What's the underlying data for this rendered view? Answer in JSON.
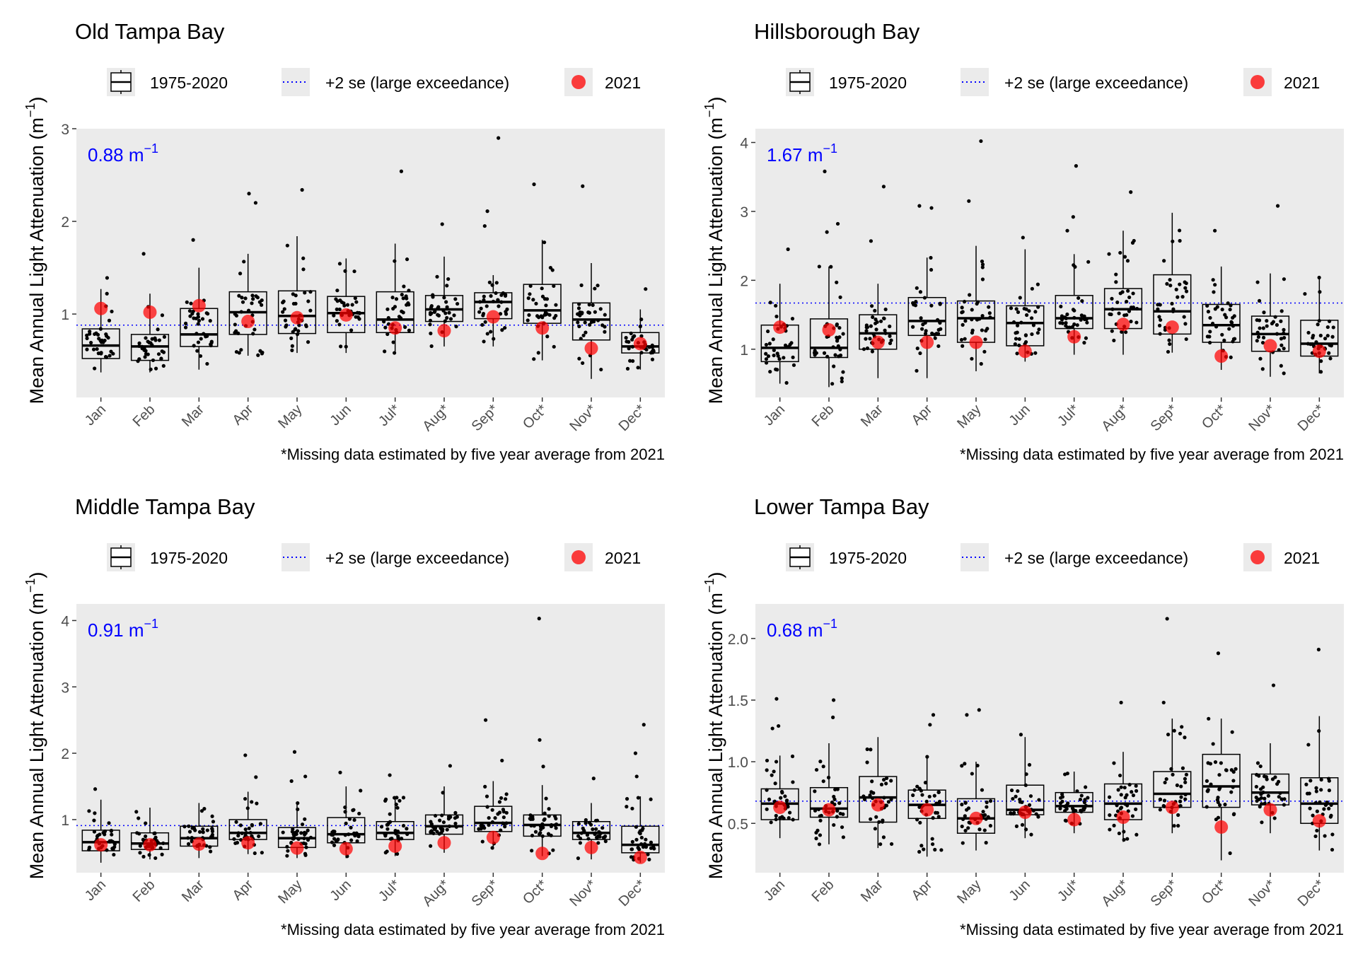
{
  "common": {
    "ylabel": "Mean Annual Light Attenuation (m",
    "ylabel_sup": "−1",
    "ylabel_close": ")",
    "legend": {
      "box": "1975-2020",
      "line": "+2 se (large exceedance)",
      "point": "2021"
    },
    "footnote": "*Missing data estimated by five year average from 2021",
    "categories": [
      "Jan",
      "Feb",
      "Mar",
      "Apr",
      "May",
      "Jun",
      "Jul*",
      "Aug*",
      "Sep*",
      "Oct*",
      "Nov*",
      "Dec*"
    ],
    "colors": {
      "panel_bg": "#ebebeb",
      "threshold": "#0000ff",
      "point2021": "#ff0000",
      "box": "#000000"
    }
  },
  "chart_data": [
    {
      "type": "box",
      "title": "Old Tampa Bay",
      "threshold": 0.88,
      "threshold_label": "0.88 m",
      "ylim": [
        0.1,
        3.0
      ],
      "yticks": [
        1,
        2,
        3
      ],
      "boxes": [
        {
          "x": "Jan",
          "q1": 0.52,
          "median": 0.66,
          "q3": 0.84,
          "whisker_low": 0.37,
          "whisker_high": 1.27
        },
        {
          "x": "Feb",
          "q1": 0.5,
          "median": 0.65,
          "q3": 0.78,
          "whisker_low": 0.37,
          "whisker_high": 1.22
        },
        {
          "x": "Mar",
          "q1": 0.65,
          "median": 0.78,
          "q3": 1.06,
          "whisker_low": 0.4,
          "whisker_high": 1.5
        },
        {
          "x": "Apr",
          "q1": 0.78,
          "median": 1.02,
          "q3": 1.24,
          "whisker_low": 0.55,
          "whisker_high": 1.65
        },
        {
          "x": "May",
          "q1": 0.79,
          "median": 0.98,
          "q3": 1.25,
          "whisker_low": 0.58,
          "whisker_high": 1.84
        },
        {
          "x": "Jun",
          "q1": 0.8,
          "median": 1.01,
          "q3": 1.19,
          "whisker_low": 0.58,
          "whisker_high": 1.6
        },
        {
          "x": "Jul*",
          "q1": 0.8,
          "median": 0.94,
          "q3": 1.24,
          "whisker_low": 0.58,
          "whisker_high": 1.76
        },
        {
          "x": "Aug*",
          "q1": 0.92,
          "median": 1.05,
          "q3": 1.2,
          "whisker_low": 0.65,
          "whisker_high": 1.62
        },
        {
          "x": "Sep*",
          "q1": 0.95,
          "median": 1.13,
          "q3": 1.23,
          "whisker_low": 0.65,
          "whisker_high": 1.42
        },
        {
          "x": "Oct*",
          "q1": 0.9,
          "median": 1.04,
          "q3": 1.32,
          "whisker_low": 0.5,
          "whisker_high": 1.8
        },
        {
          "x": "Nov*",
          "q1": 0.72,
          "median": 0.94,
          "q3": 1.12,
          "whisker_low": 0.3,
          "whisker_high": 1.55
        },
        {
          "x": "Dec*",
          "q1": 0.58,
          "median": 0.65,
          "q3": 0.8,
          "whisker_low": 0.4,
          "whisker_high": 1.05
        }
      ],
      "outliers": [
        {
          "x": "Jan",
          "y": 1.39
        },
        {
          "x": "Feb",
          "y": 1.65
        },
        {
          "x": "Mar",
          "y": 1.8
        },
        {
          "x": "Apr",
          "y": 2.3
        },
        {
          "x": "Apr",
          "y": 2.2
        },
        {
          "x": "May",
          "y": 2.34
        },
        {
          "x": "Jul*",
          "y": 2.54
        },
        {
          "x": "Aug*",
          "y": 1.97
        },
        {
          "x": "Sep*",
          "y": 2.9
        },
        {
          "x": "Sep*",
          "y": 2.11
        },
        {
          "x": "Sep*",
          "y": 1.95
        },
        {
          "x": "Oct*",
          "y": 2.4
        },
        {
          "x": "Nov*",
          "y": 2.38
        },
        {
          "x": "Dec*",
          "y": 1.27
        }
      ],
      "values_2021": [
        1.06,
        1.02,
        1.09,
        0.92,
        0.96,
        0.99,
        0.85,
        0.82,
        0.97,
        0.85,
        0.63,
        0.68
      ]
    },
    {
      "type": "box",
      "title": "Hillsborough Bay",
      "threshold": 1.67,
      "threshold_label": "1.67 m",
      "ylim": [
        0.3,
        4.2
      ],
      "yticks": [
        1,
        2,
        3,
        4
      ],
      "boxes": [
        {
          "x": "Jan",
          "q1": 0.82,
          "median": 1.02,
          "q3": 1.35,
          "whisker_low": 0.5,
          "whisker_high": 1.95
        },
        {
          "x": "Feb",
          "q1": 0.88,
          "median": 1.02,
          "q3": 1.44,
          "whisker_low": 0.45,
          "whisker_high": 2.2
        },
        {
          "x": "Mar",
          "q1": 1.0,
          "median": 1.23,
          "q3": 1.5,
          "whisker_low": 0.58,
          "whisker_high": 1.95
        },
        {
          "x": "Apr",
          "q1": 1.2,
          "median": 1.41,
          "q3": 1.75,
          "whisker_low": 0.58,
          "whisker_high": 2.33
        },
        {
          "x": "May",
          "q1": 1.1,
          "median": 1.45,
          "q3": 1.7,
          "whisker_low": 0.68,
          "whisker_high": 2.5
        },
        {
          "x": "Jun",
          "q1": 1.05,
          "median": 1.38,
          "q3": 1.63,
          "whisker_low": 0.82,
          "whisker_high": 2.45
        },
        {
          "x": "Jul*",
          "q1": 1.3,
          "median": 1.45,
          "q3": 1.78,
          "whisker_low": 0.92,
          "whisker_high": 2.38
        },
        {
          "x": "Aug*",
          "q1": 1.3,
          "median": 1.58,
          "q3": 1.88,
          "whisker_low": 0.92,
          "whisker_high": 2.72
        },
        {
          "x": "Sep*",
          "q1": 1.22,
          "median": 1.55,
          "q3": 2.08,
          "whisker_low": 0.95,
          "whisker_high": 2.98
        },
        {
          "x": "Oct*",
          "q1": 1.1,
          "median": 1.35,
          "q3": 1.65,
          "whisker_low": 0.7,
          "whisker_high": 2.2
        },
        {
          "x": "Nov*",
          "q1": 0.97,
          "median": 1.22,
          "q3": 1.48,
          "whisker_low": 0.6,
          "whisker_high": 2.1
        },
        {
          "x": "Dec*",
          "q1": 0.9,
          "median": 1.08,
          "q3": 1.42,
          "whisker_low": 0.65,
          "whisker_high": 2.05
        }
      ],
      "outliers": [
        {
          "x": "Jan",
          "y": 2.45
        },
        {
          "x": "Feb",
          "y": 3.58
        },
        {
          "x": "Feb",
          "y": 2.82
        },
        {
          "x": "Feb",
          "y": 2.7
        },
        {
          "x": "Mar",
          "y": 3.36
        },
        {
          "x": "Mar",
          "y": 2.57
        },
        {
          "x": "Apr",
          "y": 3.08
        },
        {
          "x": "Apr",
          "y": 3.05
        },
        {
          "x": "May",
          "y": 4.02
        },
        {
          "x": "May",
          "y": 3.15
        },
        {
          "x": "Jun",
          "y": 2.62
        },
        {
          "x": "Jul*",
          "y": 3.66
        },
        {
          "x": "Jul*",
          "y": 2.92
        },
        {
          "x": "Jul*",
          "y": 2.72
        },
        {
          "x": "Aug*",
          "y": 3.28
        },
        {
          "x": "Oct*",
          "y": 2.72
        },
        {
          "x": "Nov*",
          "y": 3.08
        }
      ],
      "values_2021": [
        1.32,
        1.28,
        1.1,
        1.1,
        1.1,
        0.97,
        1.18,
        1.36,
        1.32,
        0.9,
        1.05,
        0.97
      ]
    },
    {
      "type": "box",
      "title": "Middle Tampa Bay",
      "threshold": 0.91,
      "threshold_label": "0.91 m",
      "ylim": [
        0.2,
        4.25
      ],
      "yticks": [
        1,
        2,
        3,
        4
      ],
      "boxes": [
        {
          "x": "Jan",
          "q1": 0.53,
          "median": 0.66,
          "q3": 0.84,
          "whisker_low": 0.35,
          "whisker_high": 1.3
        },
        {
          "x": "Feb",
          "q1": 0.55,
          "median": 0.64,
          "q3": 0.8,
          "whisker_low": 0.4,
          "whisker_high": 1.18
        },
        {
          "x": "Mar",
          "q1": 0.6,
          "median": 0.72,
          "q3": 0.9,
          "whisker_low": 0.42,
          "whisker_high": 1.25
        },
        {
          "x": "Apr",
          "q1": 0.7,
          "median": 0.8,
          "q3": 1.0,
          "whisker_low": 0.48,
          "whisker_high": 1.42
        },
        {
          "x": "May",
          "q1": 0.58,
          "median": 0.72,
          "q3": 0.88,
          "whisker_low": 0.42,
          "whisker_high": 1.25
        },
        {
          "x": "Jun",
          "q1": 0.65,
          "median": 0.78,
          "q3": 1.03,
          "whisker_low": 0.42,
          "whisker_high": 1.5
        },
        {
          "x": "Jul*",
          "q1": 0.7,
          "median": 0.8,
          "q3": 0.97,
          "whisker_low": 0.45,
          "whisker_high": 1.35
        },
        {
          "x": "Aug*",
          "q1": 0.78,
          "median": 0.9,
          "q3": 1.07,
          "whisker_low": 0.5,
          "whisker_high": 1.5
        },
        {
          "x": "Sep*",
          "q1": 0.82,
          "median": 0.95,
          "q3": 1.2,
          "whisker_low": 0.55,
          "whisker_high": 1.58
        },
        {
          "x": "Oct*",
          "q1": 0.75,
          "median": 0.92,
          "q3": 1.07,
          "whisker_low": 0.45,
          "whisker_high": 1.52
        },
        {
          "x": "Nov*",
          "q1": 0.7,
          "median": 0.8,
          "q3": 0.97,
          "whisker_low": 0.4,
          "whisker_high": 1.25
        },
        {
          "x": "Dec*",
          "q1": 0.5,
          "median": 0.62,
          "q3": 0.9,
          "whisker_low": 0.35,
          "whisker_high": 1.35
        }
      ],
      "outliers": [
        {
          "x": "Jan",
          "y": 1.46
        },
        {
          "x": "Apr",
          "y": 1.97
        },
        {
          "x": "Apr",
          "y": 1.64
        },
        {
          "x": "May",
          "y": 2.02
        },
        {
          "x": "May",
          "y": 1.65
        },
        {
          "x": "May",
          "y": 1.58
        },
        {
          "x": "Jun",
          "y": 1.71
        },
        {
          "x": "Jul*",
          "y": 1.67
        },
        {
          "x": "Aug*",
          "y": 1.81
        },
        {
          "x": "Sep*",
          "y": 2.5
        },
        {
          "x": "Sep*",
          "y": 1.89
        },
        {
          "x": "Oct*",
          "y": 4.03
        },
        {
          "x": "Oct*",
          "y": 2.2
        },
        {
          "x": "Oct*",
          "y": 1.8
        },
        {
          "x": "Nov*",
          "y": 1.62
        },
        {
          "x": "Dec*",
          "y": 2.43
        },
        {
          "x": "Dec*",
          "y": 2.0
        },
        {
          "x": "Dec*",
          "y": 1.65
        }
      ],
      "values_2021": [
        0.62,
        0.62,
        0.63,
        0.65,
        0.57,
        0.56,
        0.6,
        0.65,
        0.73,
        0.49,
        0.58,
        0.43
      ]
    },
    {
      "type": "box",
      "title": "Lower Tampa Bay",
      "threshold": 0.68,
      "threshold_label": "0.68 m",
      "ylim": [
        0.1,
        2.28
      ],
      "yticks": [
        0.5,
        1.0,
        1.5,
        2.0
      ],
      "ytick_labels": [
        "0.5",
        "1.0",
        "1.5",
        "2.0"
      ],
      "boxes": [
        {
          "x": "Jan",
          "q1": 0.53,
          "median": 0.66,
          "q3": 0.78,
          "whisker_low": 0.38,
          "whisker_high": 1.05
        },
        {
          "x": "Feb",
          "q1": 0.55,
          "median": 0.62,
          "q3": 0.79,
          "whisker_low": 0.33,
          "whisker_high": 1.15
        },
        {
          "x": "Mar",
          "q1": 0.51,
          "median": 0.71,
          "q3": 0.88,
          "whisker_low": 0.3,
          "whisker_high": 1.2
        },
        {
          "x": "Apr",
          "q1": 0.54,
          "median": 0.65,
          "q3": 0.77,
          "whisker_low": 0.23,
          "whisker_high": 1.05
        },
        {
          "x": "May",
          "q1": 0.42,
          "median": 0.54,
          "q3": 0.7,
          "whisker_low": 0.28,
          "whisker_high": 1.0
        },
        {
          "x": "Jun",
          "q1": 0.57,
          "median": 0.61,
          "q3": 0.81,
          "whisker_low": 0.38,
          "whisker_high": 1.2
        },
        {
          "x": "Jul*",
          "q1": 0.59,
          "median": 0.64,
          "q3": 0.75,
          "whisker_low": 0.42,
          "whisker_high": 0.92
        },
        {
          "x": "Aug*",
          "q1": 0.53,
          "median": 0.66,
          "q3": 0.82,
          "whisker_low": 0.35,
          "whisker_high": 1.08
        },
        {
          "x": "Sep*",
          "q1": 0.63,
          "median": 0.74,
          "q3": 0.92,
          "whisker_low": 0.42,
          "whisker_high": 1.35
        },
        {
          "x": "Oct*",
          "q1": 0.63,
          "median": 0.8,
          "q3": 1.06,
          "whisker_low": 0.2,
          "whisker_high": 1.35
        },
        {
          "x": "Nov*",
          "q1": 0.65,
          "median": 0.75,
          "q3": 0.9,
          "whisker_low": 0.42,
          "whisker_high": 1.15
        },
        {
          "x": "Dec*",
          "q1": 0.5,
          "median": 0.66,
          "q3": 0.87,
          "whisker_low": 0.28,
          "whisker_high": 1.37
        }
      ],
      "outliers": [
        {
          "x": "Jan",
          "y": 1.51
        },
        {
          "x": "Jan",
          "y": 1.29
        },
        {
          "x": "Jan",
          "y": 1.27
        },
        {
          "x": "Feb",
          "y": 1.5
        },
        {
          "x": "Feb",
          "y": 1.36
        },
        {
          "x": "Apr",
          "y": 1.38
        },
        {
          "x": "Apr",
          "y": 1.3
        },
        {
          "x": "May",
          "y": 1.42
        },
        {
          "x": "May",
          "y": 1.38
        },
        {
          "x": "Jun",
          "y": 1.22
        },
        {
          "x": "Aug*",
          "y": 1.48
        },
        {
          "x": "Sep*",
          "y": 2.16
        },
        {
          "x": "Sep*",
          "y": 1.48
        },
        {
          "x": "Oct*",
          "y": 1.88
        },
        {
          "x": "Nov*",
          "y": 1.62
        },
        {
          "x": "Dec*",
          "y": 1.91
        }
      ],
      "values_2021": [
        0.63,
        0.61,
        0.65,
        0.61,
        0.54,
        0.59,
        0.53,
        0.55,
        0.63,
        0.47,
        0.61,
        0.52
      ]
    }
  ]
}
